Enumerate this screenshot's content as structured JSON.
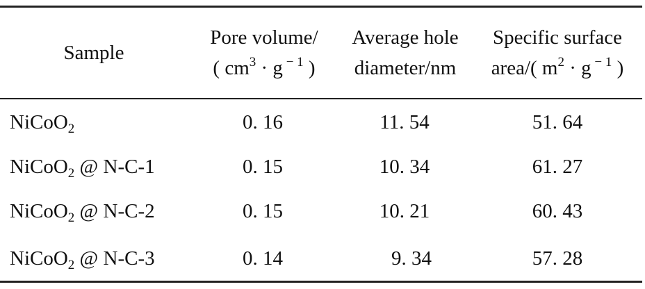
{
  "table": {
    "headers": {
      "sample": "Sample",
      "pore_volume": {
        "line1": "Pore volume/",
        "line2_pre": "( cm",
        "line2_sup1": "3",
        "line2_mid": " · g",
        "line2_sup2": " − 1",
        "line2_post": " )"
      },
      "avg_hole": {
        "line1": "Average hole",
        "line2": "diameter/nm"
      },
      "surface_area": {
        "line1": "Specific surface",
        "line2_pre": "area/( m",
        "line2_sup1": "2",
        "line2_mid": " · g",
        "line2_sup2": " − 1",
        "line2_post": " )"
      }
    },
    "rows": [
      {
        "sample_pre": "NiCoO",
        "sample_sub": "2",
        "sample_post": "",
        "pore_volume": "0. 16",
        "avg_hole": "11. 54",
        "surface_area": "51. 64"
      },
      {
        "sample_pre": "NiCoO",
        "sample_sub": "2",
        "sample_post": " @ N-C-1",
        "pore_volume": "0. 15",
        "avg_hole": "10. 34",
        "surface_area": "61. 27"
      },
      {
        "sample_pre": "NiCoO",
        "sample_sub": "2",
        "sample_post": " @ N-C-2",
        "pore_volume": "0. 15",
        "avg_hole": "10. 21",
        "surface_area": "60. 43"
      },
      {
        "sample_pre": "NiCoO",
        "sample_sub": "2",
        "sample_post": " @ N-C-3",
        "pore_volume": "0. 14",
        "avg_hole": "9. 34",
        "surface_area": "57. 28"
      }
    ]
  }
}
